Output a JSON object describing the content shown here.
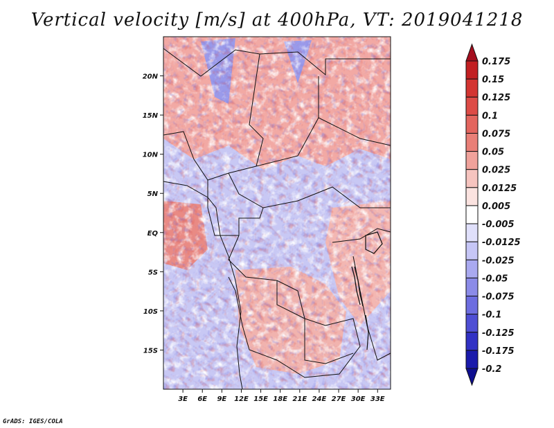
{
  "title": "Vertical velocity [m/s] at 400hPa, VT: 2019041218",
  "footer": "GrADS: IGES/COLA",
  "map": {
    "lat_ticks": [
      "20N",
      "15N",
      "10N",
      "5N",
      "EQ",
      "5S",
      "10S",
      "15S"
    ],
    "lon_ticks": [
      "3E",
      "6E",
      "9E",
      "12E",
      "15E",
      "18E",
      "21E",
      "24E",
      "27E",
      "30E",
      "33E"
    ],
    "lat_values": [
      20,
      15,
      10,
      5,
      0,
      -5,
      -10,
      -15
    ],
    "lon_values": [
      3,
      6,
      9,
      12,
      15,
      18,
      21,
      24,
      27,
      30,
      33
    ],
    "lon_range": [
      0,
      35
    ],
    "lat_range": [
      -20,
      25
    ]
  },
  "colorbar": {
    "labels": [
      "0.175",
      "0.15",
      "0.125",
      "0.1",
      "0.075",
      "0.05",
      "0.025",
      "0.0125",
      "0.005",
      "-0.005",
      "-0.0125",
      "-0.025",
      "-0.05",
      "-0.075",
      "-0.1",
      "-0.125",
      "-0.175",
      "-0.2"
    ],
    "colors": [
      "#a40e1e",
      "#c21f22",
      "#d33431",
      "#dd4b46",
      "#e3655e",
      "#e97f77",
      "#f0a29b",
      "#f6c4bf",
      "#fbe3e0",
      "#ffffff",
      "#e0e0fb",
      "#c6c6f6",
      "#a9a9f0",
      "#8b8be8",
      "#6d6de0",
      "#4e4ed4",
      "#3131c4",
      "#1a1aab",
      "#0e0e8f"
    ]
  }
}
